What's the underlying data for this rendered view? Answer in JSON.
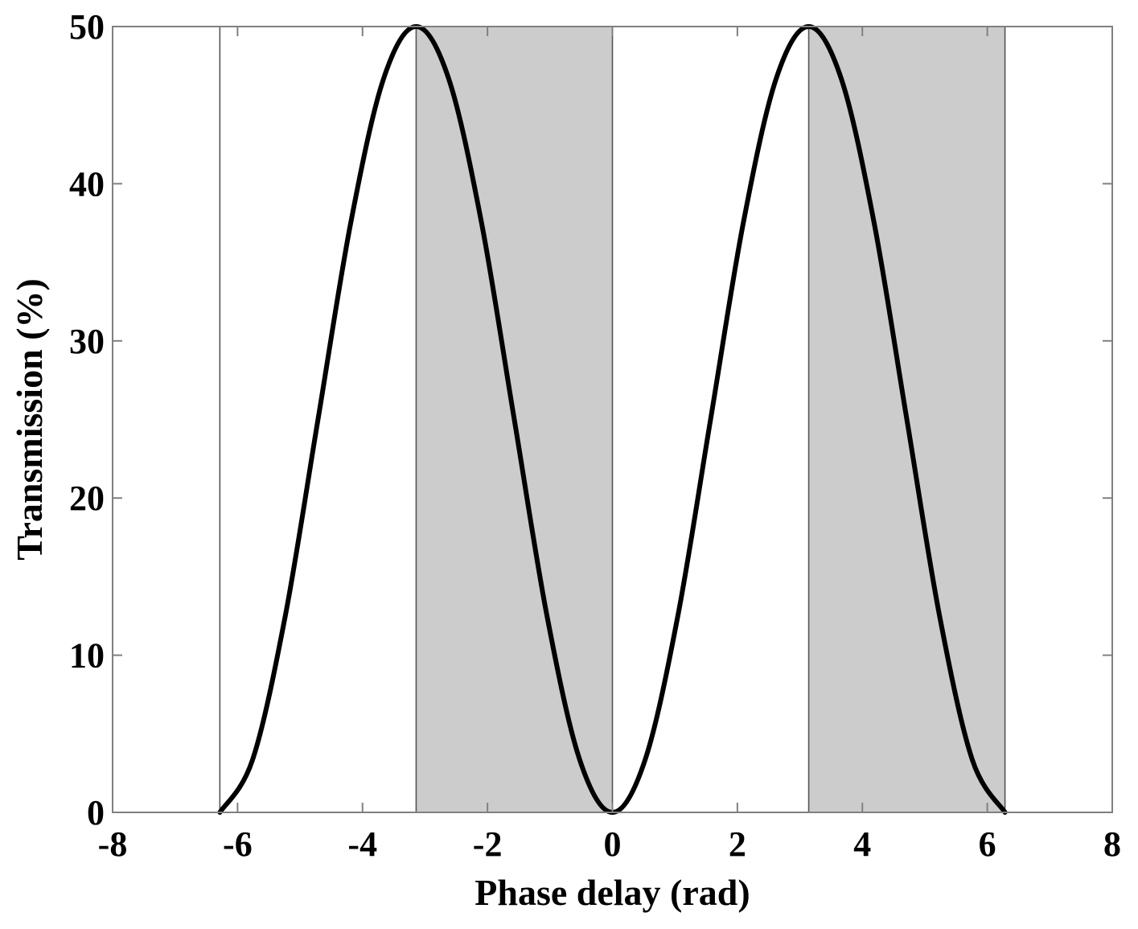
{
  "chart_data": {
    "type": "line",
    "title": "",
    "xlabel": "Phase delay (rad)",
    "ylabel": "Transmission (%)",
    "xlim": [
      -8,
      8
    ],
    "ylim": [
      0,
      50
    ],
    "x_ticks": [
      -8,
      -6,
      -4,
      -2,
      0,
      2,
      4,
      6,
      8
    ],
    "y_ticks": [
      0,
      10,
      20,
      30,
      40,
      50
    ],
    "x_tick_labels": [
      "-8",
      "-6",
      "-4",
      "-2",
      "0",
      "2",
      "4",
      "6",
      "8"
    ],
    "y_tick_labels": [
      "0",
      "10",
      "20",
      "30",
      "40",
      "50"
    ],
    "grid": false,
    "series": [
      {
        "x": [
          -6.2832,
          -5.7596,
          -5.236,
          -4.7124,
          -4.1888,
          -3.6652,
          -3.1416,
          -2.618,
          -2.0944,
          -1.5708,
          -1.0472,
          -0.5236,
          0,
          0.5236,
          1.0472,
          1.5708,
          2.0944,
          2.618,
          3.1416,
          3.6652,
          4.1888,
          4.7124,
          5.236,
          5.7596,
          6.2832
        ],
        "y": [
          0,
          3.35,
          12.5,
          25,
          37.5,
          46.65,
          50,
          46.65,
          37.5,
          25,
          12.5,
          3.35,
          0,
          3.35,
          12.5,
          25,
          37.5,
          46.65,
          50,
          46.65,
          37.5,
          25,
          12.5,
          3.35,
          0
        ]
      }
    ],
    "shaded_regions": [
      {
        "x_start": -3.1416,
        "x_end": 0
      },
      {
        "x_start": 3.1416,
        "x_end": 6.2832
      }
    ],
    "vertical_lines": [
      -6.2832,
      -3.1416,
      0,
      3.1416,
      6.2832
    ],
    "colors": {
      "curve": "#000000",
      "shade": "#cccccc",
      "axes": "#808080",
      "vline": "#555555"
    }
  }
}
